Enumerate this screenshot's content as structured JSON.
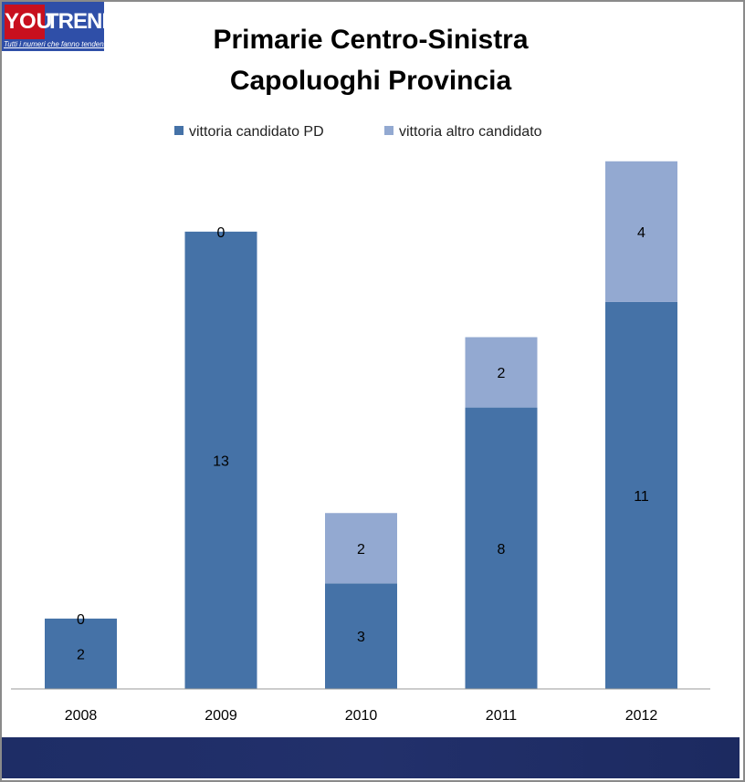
{
  "logo": {
    "text_red": "YOU",
    "text_blue": "TREND",
    "tagline": "Tutti i numeri che fanno tendenza"
  },
  "chart_data": {
    "type": "bar",
    "stacked": true,
    "title": "Primarie Centro-Sinistra",
    "subtitle": "Capoluoghi Provincia",
    "categories": [
      "2008",
      "2009",
      "2010",
      "2011",
      "2012"
    ],
    "series": [
      {
        "name": "vittoria candidato PD",
        "color": "#4572a7",
        "values": [
          2,
          13,
          3,
          8,
          11
        ]
      },
      {
        "name": "vittoria altro candidato",
        "color": "#93a9d1",
        "values": [
          0,
          0,
          2,
          2,
          4
        ]
      }
    ],
    "ylim": [
      0,
      15.5
    ],
    "legend": "top",
    "grid": false,
    "xlabel": "",
    "ylabel": ""
  }
}
